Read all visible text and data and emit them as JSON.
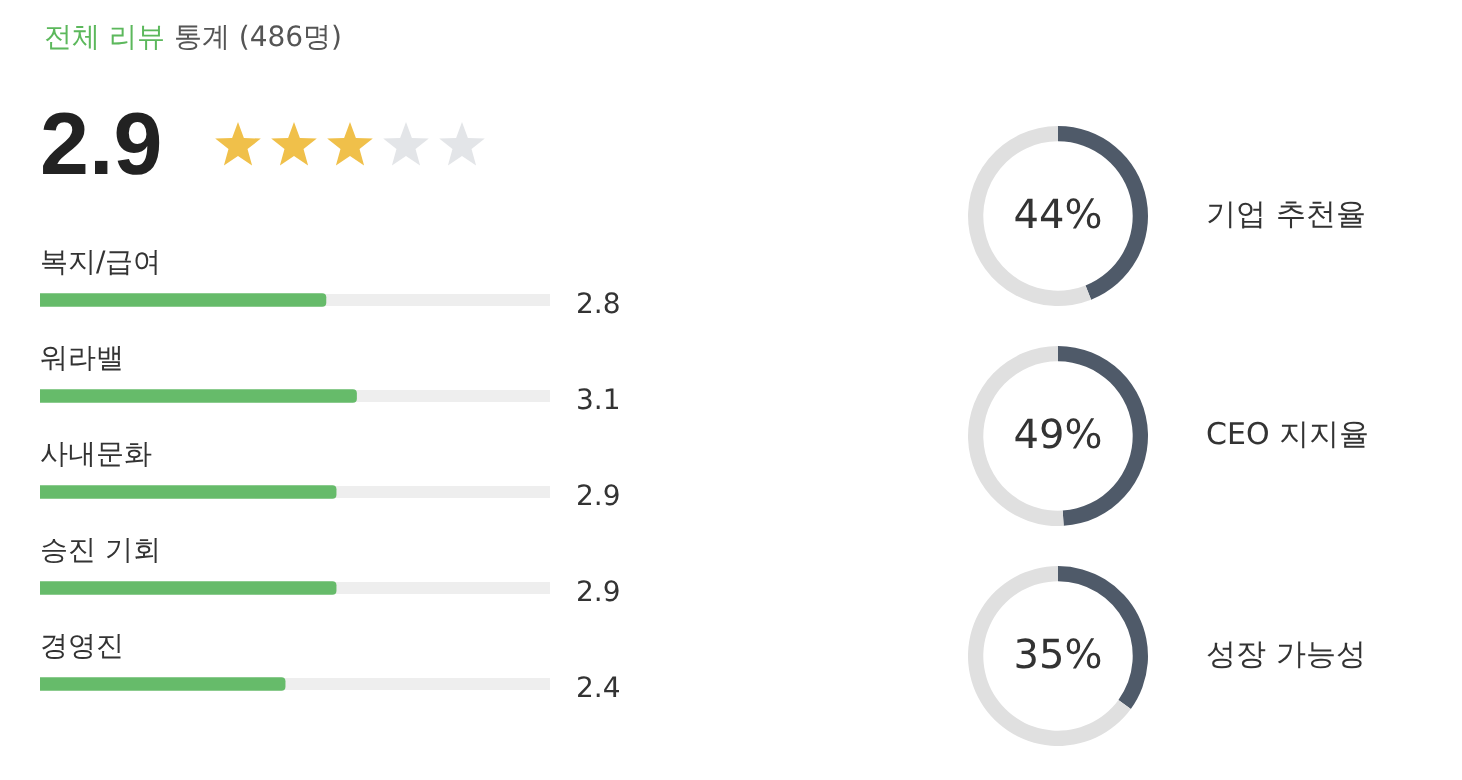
{
  "chart_data": [
    {
      "type": "bar",
      "orientation": "horizontal",
      "title": "전체 리뷰 통계 (486명)",
      "annotations": [
        "2.9"
      ],
      "categories": [
        "복지/급여",
        "워라밸",
        "사내문화",
        "승진 기회",
        "경영진"
      ],
      "values": [
        2.8,
        3.1,
        2.9,
        2.9,
        2.4
      ],
      "color": "#66bb6a",
      "xlim": [
        0,
        5
      ],
      "data_labels": true,
      "legend": false
    },
    {
      "type": "donut",
      "title": "기업 추천율",
      "categories": [
        null,
        null
      ],
      "values": [
        44,
        56
      ],
      "colors": [
        "#4f5a69",
        "#e0e0e0"
      ],
      "value_labels": [
        "44%",
        null
      ],
      "legend": false
    },
    {
      "type": "donut",
      "title": "CEO 지지율",
      "categories": [
        null,
        null
      ],
      "values": [
        49,
        51
      ],
      "colors": [
        "#4f5a69",
        "#e0e0e0"
      ],
      "value_labels": [
        "49%",
        null
      ],
      "legend": false
    },
    {
      "type": "donut",
      "title": "성장 가능성",
      "categories": [
        null,
        null
      ],
      "values": [
        35,
        65
      ],
      "colors": [
        "#4f5a69",
        "#e0e0e0"
      ],
      "value_labels": [
        "35%",
        null
      ],
      "legend": false
    }
  ]
}
